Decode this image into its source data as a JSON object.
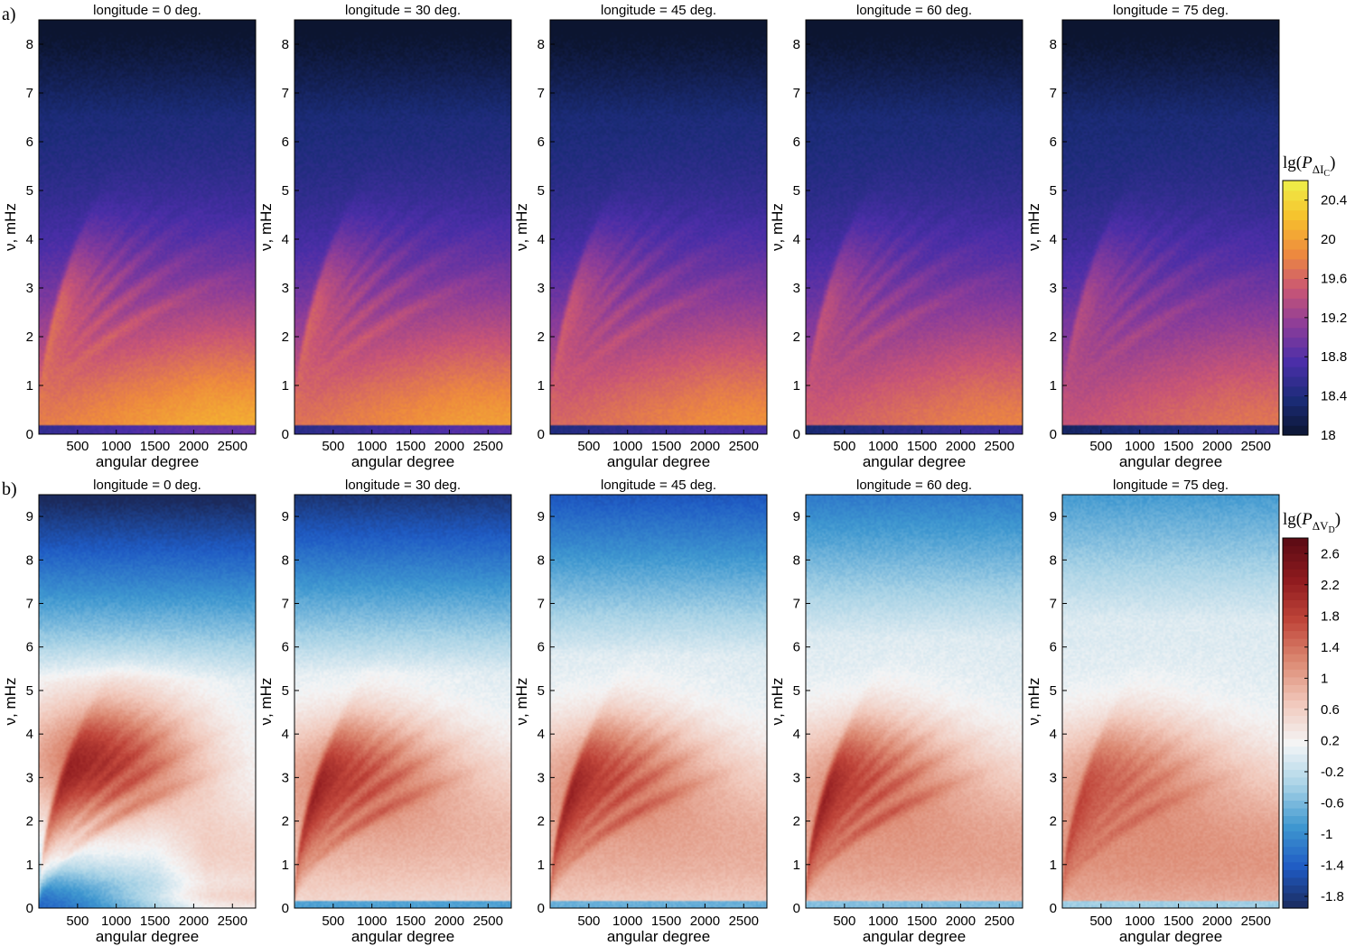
{
  "figure": {
    "rows": [
      {
        "label": "a)",
        "kind": "intensity",
        "colorbar": {
          "label_prefix": "lg(",
          "label_var": "P",
          "label_sub": "ΔI",
          "label_subsub": "C",
          "label_suffix": ")",
          "ticks": [
            "18",
            "18.4",
            "18.8",
            "19.2",
            "19.6",
            "20",
            "20.4"
          ],
          "range": [
            18,
            20.6
          ],
          "colors": [
            "#0c1530",
            "#1b2c78",
            "#4a2ea8",
            "#8a3c9a",
            "#c85576",
            "#ee8a3e",
            "#f7c12c",
            "#eef04a"
          ]
        }
      },
      {
        "label": "b)",
        "kind": "velocity",
        "colorbar": {
          "label_prefix": "lg(",
          "label_var": "P",
          "label_sub": "ΔV",
          "label_subsub": "D",
          "label_suffix": ")",
          "ticks": [
            "-1.8",
            "-1.4",
            "-1",
            "-0.6",
            "-0.2",
            "0.2",
            "0.6",
            "1",
            "1.4",
            "1.8",
            "2.2",
            "2.6"
          ],
          "range": [
            -1.95,
            2.8
          ],
          "colors": [
            "#1b2a5c",
            "#1f5bc4",
            "#3f98d0",
            "#a9d3e6",
            "#f4f5f6",
            "#f1c8bb",
            "#dc8a73",
            "#c0453a",
            "#8e1a1e",
            "#5a0a14"
          ]
        }
      }
    ]
  },
  "chart_data": [
    {
      "type": "heatmap",
      "row": "a)",
      "title": "longitude  =  0 deg.",
      "xlabel": "angular degree",
      "ylabel": "ν, mHz",
      "xticks": [
        "500",
        "1000",
        "1500",
        "2000",
        "2500"
      ],
      "xlim": [
        0,
        2800
      ],
      "yticks": [
        "0",
        "1",
        "2",
        "3",
        "4",
        "5",
        "6",
        "7",
        "8"
      ],
      "ylim": [
        0,
        8.5
      ],
      "colorbar_range": [
        18,
        20.6
      ]
    },
    {
      "type": "heatmap",
      "row": "a)",
      "title": "longitude  =  30 deg.",
      "xlabel": "angular degree",
      "ylabel": "ν, mHz",
      "xticks": [
        "500",
        "1000",
        "1500",
        "2000",
        "2500"
      ],
      "xlim": [
        0,
        2800
      ],
      "yticks": [
        "0",
        "1",
        "2",
        "3",
        "4",
        "5",
        "6",
        "7",
        "8"
      ],
      "ylim": [
        0,
        8.5
      ],
      "colorbar_range": [
        18,
        20.6
      ]
    },
    {
      "type": "heatmap",
      "row": "a)",
      "title": "longitude  =  45 deg.",
      "xlabel": "angular degree",
      "ylabel": "ν, mHz",
      "xticks": [
        "500",
        "1000",
        "1500",
        "2000",
        "2500"
      ],
      "xlim": [
        0,
        2800
      ],
      "yticks": [
        "0",
        "1",
        "2",
        "3",
        "4",
        "5",
        "6",
        "7",
        "8"
      ],
      "ylim": [
        0,
        8.5
      ],
      "colorbar_range": [
        18,
        20.6
      ]
    },
    {
      "type": "heatmap",
      "row": "a)",
      "title": "longitude  =  60 deg.",
      "xlabel": "angular degree",
      "ylabel": "ν, mHz",
      "xticks": [
        "500",
        "1000",
        "1500",
        "2000",
        "2500"
      ],
      "xlim": [
        0,
        2800
      ],
      "yticks": [
        "0",
        "1",
        "2",
        "3",
        "4",
        "5",
        "6",
        "7",
        "8"
      ],
      "ylim": [
        0,
        8.5
      ],
      "colorbar_range": [
        18,
        20.6
      ]
    },
    {
      "type": "heatmap",
      "row": "a)",
      "title": "longitude  =  75 deg.",
      "xlabel": "angular degree",
      "ylabel": "ν, mHz",
      "xticks": [
        "500",
        "1000",
        "1500",
        "2000",
        "2500"
      ],
      "xlim": [
        0,
        2800
      ],
      "yticks": [
        "0",
        "1",
        "2",
        "3",
        "4",
        "5",
        "6",
        "7",
        "8"
      ],
      "ylim": [
        0,
        8.5
      ],
      "colorbar_range": [
        18,
        20.6
      ]
    },
    {
      "type": "heatmap",
      "row": "b)",
      "title": "longitude  =  0 deg.",
      "xlabel": "angular degree",
      "ylabel": "ν, mHz",
      "xticks": [
        "500",
        "1000",
        "1500",
        "2000",
        "2500"
      ],
      "xlim": [
        0,
        2800
      ],
      "yticks": [
        "0",
        "1",
        "2",
        "3",
        "4",
        "5",
        "6",
        "7",
        "8",
        "9"
      ],
      "ylim": [
        0,
        9.5
      ],
      "colorbar_range": [
        -1.95,
        2.8
      ]
    },
    {
      "type": "heatmap",
      "row": "b)",
      "title": "longitude  =  30 deg.",
      "xlabel": "angular degree",
      "ylabel": "ν, mHz",
      "xticks": [
        "500",
        "1000",
        "1500",
        "2000",
        "2500"
      ],
      "xlim": [
        0,
        2800
      ],
      "yticks": [
        "0",
        "1",
        "2",
        "3",
        "4",
        "5",
        "6",
        "7",
        "8",
        "9"
      ],
      "ylim": [
        0,
        9.5
      ],
      "colorbar_range": [
        -1.95,
        2.8
      ]
    },
    {
      "type": "heatmap",
      "row": "b)",
      "title": "longitude  =  45 deg.",
      "xlabel": "angular degree",
      "ylabel": "ν, mHz",
      "xticks": [
        "500",
        "1000",
        "1500",
        "2000",
        "2500"
      ],
      "xlim": [
        0,
        2800
      ],
      "yticks": [
        "0",
        "1",
        "2",
        "3",
        "4",
        "5",
        "6",
        "7",
        "8",
        "9"
      ],
      "ylim": [
        0,
        9.5
      ],
      "colorbar_range": [
        -1.95,
        2.8
      ]
    },
    {
      "type": "heatmap",
      "row": "b)",
      "title": "longitude  =  60 deg.",
      "xlabel": "angular degree",
      "ylabel": "ν, mHz",
      "xticks": [
        "500",
        "1000",
        "1500",
        "2000",
        "2500"
      ],
      "xlim": [
        0,
        2800
      ],
      "yticks": [
        "0",
        "1",
        "2",
        "3",
        "4",
        "5",
        "6",
        "7",
        "8",
        "9"
      ],
      "ylim": [
        0,
        9.5
      ],
      "colorbar_range": [
        -1.95,
        2.8
      ]
    },
    {
      "type": "heatmap",
      "row": "b)",
      "title": "longitude  =  75 deg.",
      "xlabel": "angular degree",
      "ylabel": "ν, mHz",
      "xticks": [
        "500",
        "1000",
        "1500",
        "2000",
        "2500"
      ],
      "xlim": [
        0,
        2800
      ],
      "yticks": [
        "0",
        "1",
        "2",
        "3",
        "4",
        "5",
        "6",
        "7",
        "8",
        "9"
      ],
      "ylim": [
        0,
        9.5
      ],
      "colorbar_range": [
        -1.95,
        2.8
      ]
    }
  ]
}
